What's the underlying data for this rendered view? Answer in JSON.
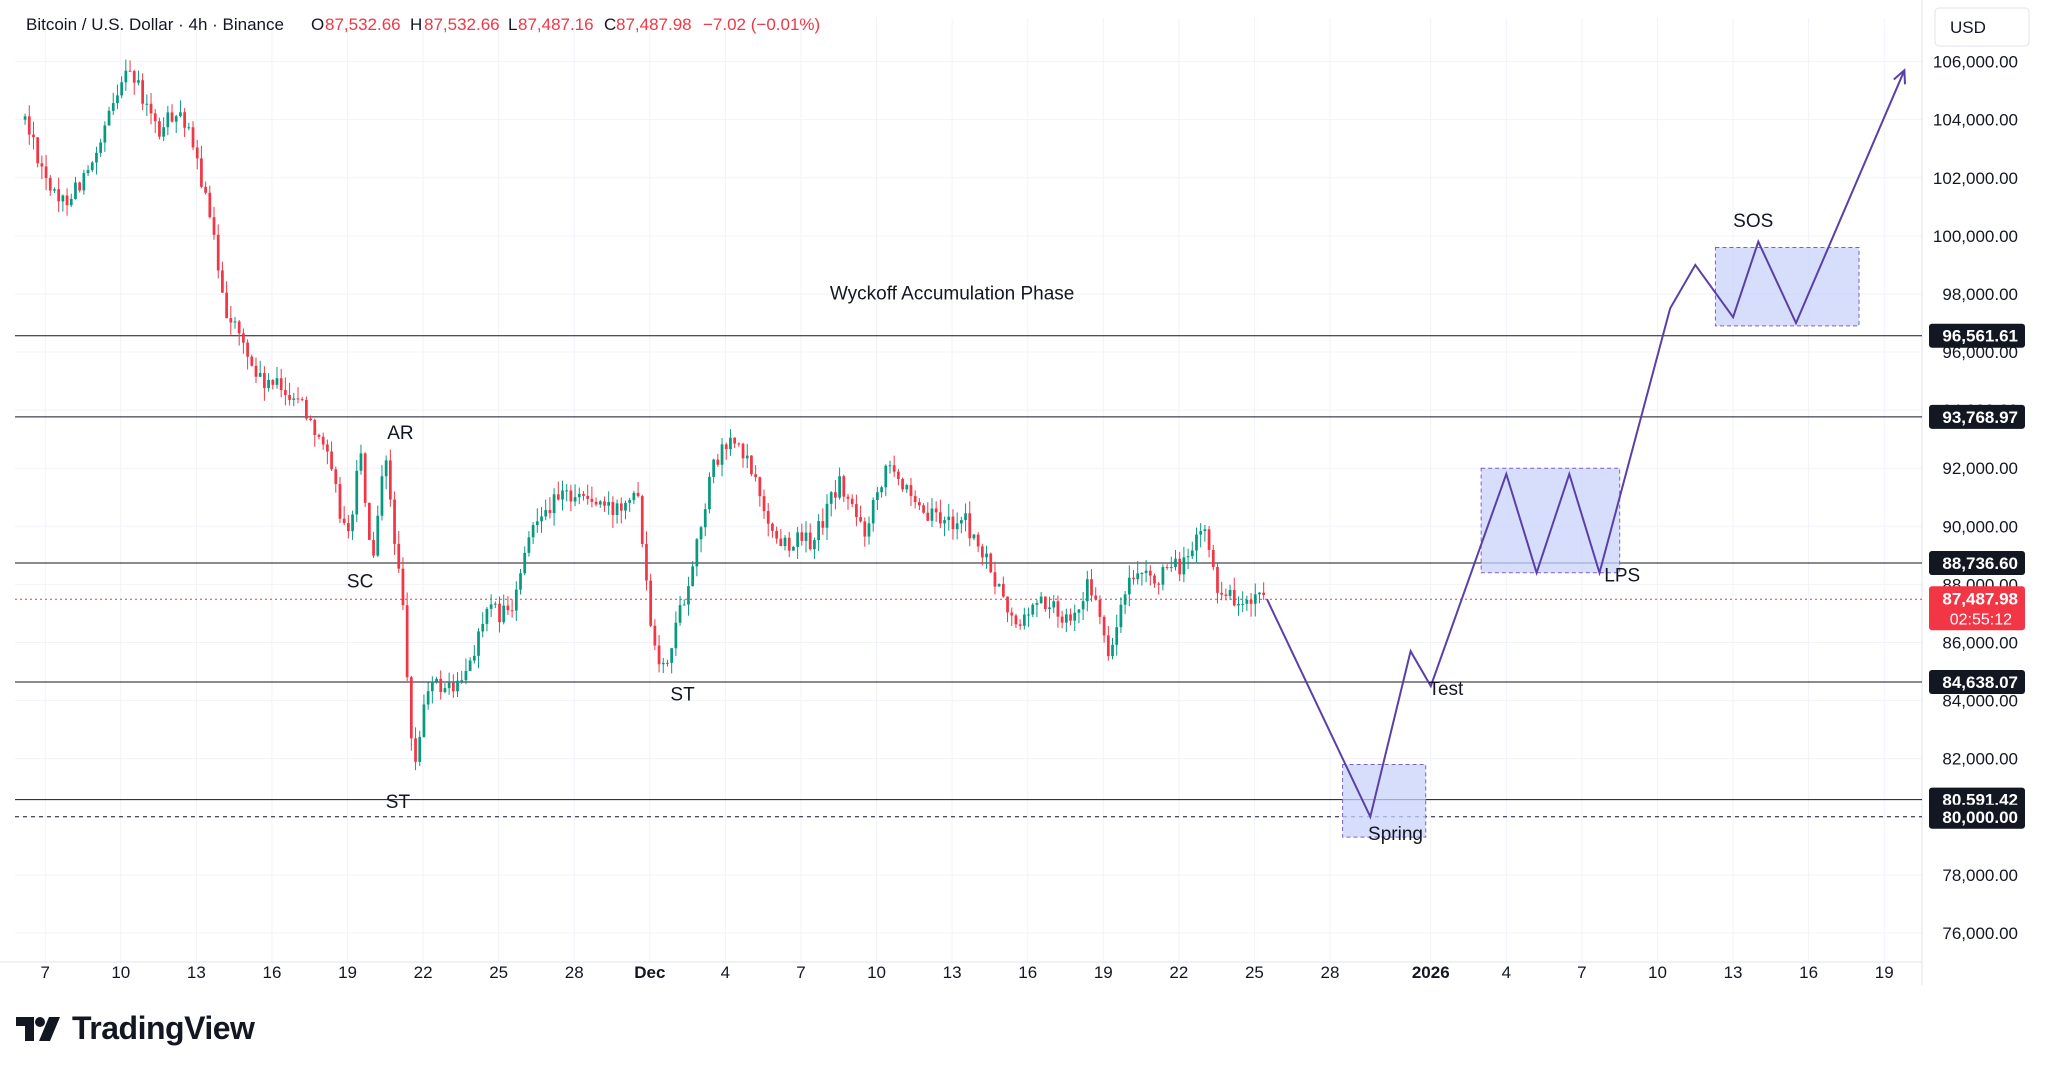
{
  "header": {
    "symbol": "Bitcoin / U.S. Dollar · 4h · Binance",
    "open_label": "O",
    "open": "87,532.66",
    "high_label": "H",
    "high": "87,532.66",
    "low_label": "L",
    "low": "87,487.16",
    "close_label": "C",
    "close": "87,487.98",
    "change": "−7.02 (−0.01%)"
  },
  "currency": "USD",
  "brand": "TradingView",
  "colors": {
    "up": "#089981",
    "down": "#f23645",
    "path": "#5b3fa8",
    "box_fill": "#c8d3fb",
    "box_stroke": "#7b5fd0",
    "level": "#131722",
    "current": "#f23645"
  },
  "chart_data": {
    "type": "candlestick",
    "title": "Wyckoff Accumulation Phase",
    "x_axis": {
      "ticks": [
        {
          "label": "7",
          "day": 7
        },
        {
          "label": "10",
          "day": 10
        },
        {
          "label": "13",
          "day": 13
        },
        {
          "label": "16",
          "day": 16
        },
        {
          "label": "19",
          "day": 19
        },
        {
          "label": "22",
          "day": 22
        },
        {
          "label": "25",
          "day": 25
        },
        {
          "label": "28",
          "day": 28
        },
        {
          "label": "Dec",
          "day": 31,
          "bold": true
        },
        {
          "label": "4",
          "day": 34
        },
        {
          "label": "7",
          "day": 37
        },
        {
          "label": "10",
          "day": 40
        },
        {
          "label": "13",
          "day": 43
        },
        {
          "label": "16",
          "day": 46
        },
        {
          "label": "19",
          "day": 49
        },
        {
          "label": "22",
          "day": 52
        },
        {
          "label": "25",
          "day": 55
        },
        {
          "label": "28",
          "day": 58
        },
        {
          "label": "2026",
          "day": 62,
          "bold": true
        },
        {
          "label": "4",
          "day": 65
        },
        {
          "label": "7",
          "day": 68
        },
        {
          "label": "10",
          "day": 71
        },
        {
          "label": "13",
          "day": 74
        },
        {
          "label": "16",
          "day": 77
        },
        {
          "label": "19",
          "day": 80
        }
      ]
    },
    "y_axis": {
      "range": [
        75000,
        107500
      ],
      "ticks": [
        "76,000.00",
        "78,000.00",
        "80,000.00",
        "82,000.00",
        "84,000.00",
        "86,000.00",
        "88,000.00",
        "90,000.00",
        "92,000.00",
        "94,000.00",
        "96,000.00",
        "98,000.00",
        "100,000.00",
        "102,000.00",
        "104,000.00",
        "106,000.00"
      ]
    },
    "levels": [
      {
        "value": 96561.61,
        "label": "96,561.61",
        "style": "solid"
      },
      {
        "value": 93768.97,
        "label": "93,768.97",
        "style": "solid"
      },
      {
        "value": 88736.6,
        "label": "88,736.60",
        "style": "solid"
      },
      {
        "value": 84638.07,
        "label": "84,638.07",
        "style": "solid"
      },
      {
        "value": 80591.42,
        "label": "80,591.42",
        "style": "solid"
      },
      {
        "value": 80000.0,
        "label": "80,000.00",
        "style": "dashed"
      }
    ],
    "current": {
      "value": 87487.98,
      "label": "87,487.98",
      "countdown": "02:55:12"
    },
    "anchors": [
      {
        "day": 6.2,
        "price": 104000
      },
      {
        "day": 7.5,
        "price": 101000
      },
      {
        "day": 9.0,
        "price": 102500
      },
      {
        "day": 10.2,
        "price": 106000
      },
      {
        "day": 11.5,
        "price": 103500
      },
      {
        "day": 12.3,
        "price": 104500
      },
      {
        "day": 13.2,
        "price": 102000
      },
      {
        "day": 14.2,
        "price": 97500
      },
      {
        "day": 15.5,
        "price": 95000
      },
      {
        "day": 17.0,
        "price": 94500
      },
      {
        "day": 18.0,
        "price": 93000
      },
      {
        "day": 19.0,
        "price": 89500
      },
      {
        "day": 19.5,
        "price": 92500
      },
      {
        "day": 20.0,
        "price": 88500
      },
      {
        "day": 20.5,
        "price": 92500
      },
      {
        "day": 21.2,
        "price": 87000
      },
      {
        "day": 21.6,
        "price": 81500
      },
      {
        "day": 22.2,
        "price": 84500
      },
      {
        "day": 23.5,
        "price": 84500
      },
      {
        "day": 24.5,
        "price": 87000
      },
      {
        "day": 25.5,
        "price": 87000
      },
      {
        "day": 26.5,
        "price": 90500
      },
      {
        "day": 28.0,
        "price": 91200
      },
      {
        "day": 29.5,
        "price": 90500
      },
      {
        "day": 30.5,
        "price": 91500
      },
      {
        "day": 31.0,
        "price": 87000
      },
      {
        "day": 31.5,
        "price": 85000
      },
      {
        "day": 32.5,
        "price": 88000
      },
      {
        "day": 33.5,
        "price": 92000
      },
      {
        "day": 34.2,
        "price": 93000
      },
      {
        "day": 35.0,
        "price": 92000
      },
      {
        "day": 36.0,
        "price": 89500
      },
      {
        "day": 37.5,
        "price": 89500
      },
      {
        "day": 38.5,
        "price": 91500
      },
      {
        "day": 39.5,
        "price": 89800
      },
      {
        "day": 40.5,
        "price": 92500
      },
      {
        "day": 41.5,
        "price": 90500
      },
      {
        "day": 42.5,
        "price": 90200
      },
      {
        "day": 43.5,
        "price": 90200
      },
      {
        "day": 44.5,
        "price": 88500
      },
      {
        "day": 45.5,
        "price": 86500
      },
      {
        "day": 46.5,
        "price": 87500
      },
      {
        "day": 47.5,
        "price": 86800
      },
      {
        "day": 48.5,
        "price": 88000
      },
      {
        "day": 49.2,
        "price": 85500
      },
      {
        "day": 50.0,
        "price": 88000
      },
      {
        "day": 51.5,
        "price": 88300
      },
      {
        "day": 52.5,
        "price": 89000
      },
      {
        "day": 53.0,
        "price": 90000
      },
      {
        "day": 53.5,
        "price": 88000
      },
      {
        "day": 54.5,
        "price": 87300
      },
      {
        "day": 55.5,
        "price": 87490
      }
    ],
    "projection": [
      {
        "day": 55.5,
        "price": 87490
      },
      {
        "day": 59.6,
        "price": 80000
      },
      {
        "day": 61.2,
        "price": 85700
      },
      {
        "day": 62.0,
        "price": 84500
      },
      {
        "day": 65.0,
        "price": 91800
      },
      {
        "day": 66.2,
        "price": 88400
      },
      {
        "day": 67.5,
        "price": 91800
      },
      {
        "day": 68.7,
        "price": 88400
      },
      {
        "day": 71.5,
        "price": 97500
      },
      {
        "day": 72.5,
        "price": 99000
      },
      {
        "day": 74.0,
        "price": 97200
      },
      {
        "day": 75.0,
        "price": 99800
      },
      {
        "day": 76.5,
        "price": 97000
      },
      {
        "day": 80.8,
        "price": 105700
      }
    ],
    "boxes": [
      {
        "name": "spring-box",
        "day_from": 58.5,
        "day_to": 61.8,
        "price_from": 79300,
        "price_to": 81800
      },
      {
        "name": "lps-box",
        "day_from": 64.0,
        "day_to": 69.5,
        "price_from": 88400,
        "price_to": 92000
      },
      {
        "name": "sos-box",
        "day_from": 73.3,
        "day_to": 79.0,
        "price_from": 96900,
        "price_to": 99600
      }
    ],
    "annotations": [
      {
        "text": "AR",
        "day": 21.1,
        "price": 93000
      },
      {
        "text": "SC",
        "day": 19.5,
        "price": 87900
      },
      {
        "text": "ST",
        "day": 21.0,
        "price": 80300
      },
      {
        "text": "ST",
        "day": 32.3,
        "price": 84000
      },
      {
        "text": "Spring",
        "day": 60.6,
        "price": 79200
      },
      {
        "text": "Test",
        "day": 62.6,
        "price": 84200
      },
      {
        "text": "LPS",
        "day": 69.6,
        "price": 88100
      },
      {
        "text": "SOS",
        "day": 74.8,
        "price": 100300
      },
      {
        "text": "Wyckoff Accumulation Phase",
        "day": 43.0,
        "price": 97800
      }
    ]
  }
}
